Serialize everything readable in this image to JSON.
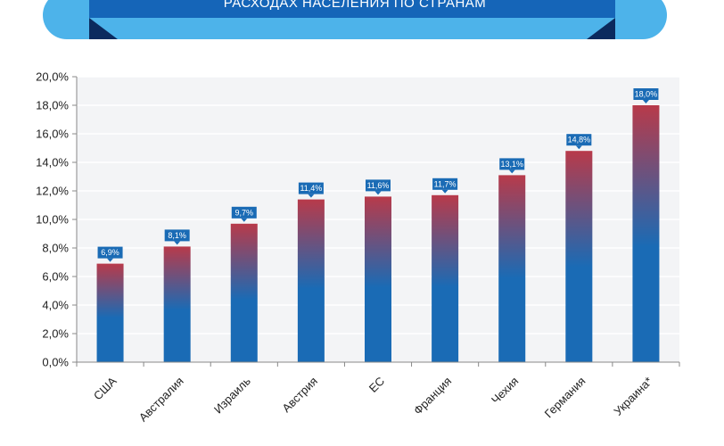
{
  "header": {
    "title": "РАСХОДАХ НАСЕЛЕНИЯ ПО СТРАНАМ"
  },
  "colors": {
    "banner_light": "#4db3ea",
    "banner_dark": "#1565b8",
    "banner_fold": "#0b2a5e",
    "bar_base": "#1a6bb5",
    "bar_top": "#b83a4a",
    "label_box": "#1a6bb5",
    "plot_bg": "#f3f4f6",
    "grid": "#ffffff"
  },
  "chart_data": {
    "type": "bar",
    "title": "",
    "xlabel": "",
    "ylabel": "",
    "ylim": [
      0,
      20
    ],
    "yticks": [
      "0,0%",
      "2,0%",
      "4,0%",
      "6,0%",
      "8,0%",
      "10,0%",
      "12,0%",
      "14,0%",
      "16,0%",
      "18,0%",
      "20,0%"
    ],
    "categories": [
      "США",
      "Австралия",
      "Израиль",
      "Австрия",
      "ЕС",
      "Франция",
      "Чехия",
      "Германия",
      "Украина*"
    ],
    "values": [
      6.9,
      8.1,
      9.7,
      11.4,
      11.6,
      11.7,
      13.1,
      14.8,
      18.0
    ],
    "data_labels": [
      "6,9%",
      "8,1%",
      "9,7%",
      "11,4%",
      "11,6%",
      "11,7%",
      "13,1%",
      "14,8%",
      "18,0%"
    ],
    "grid": true,
    "legend": "none"
  }
}
